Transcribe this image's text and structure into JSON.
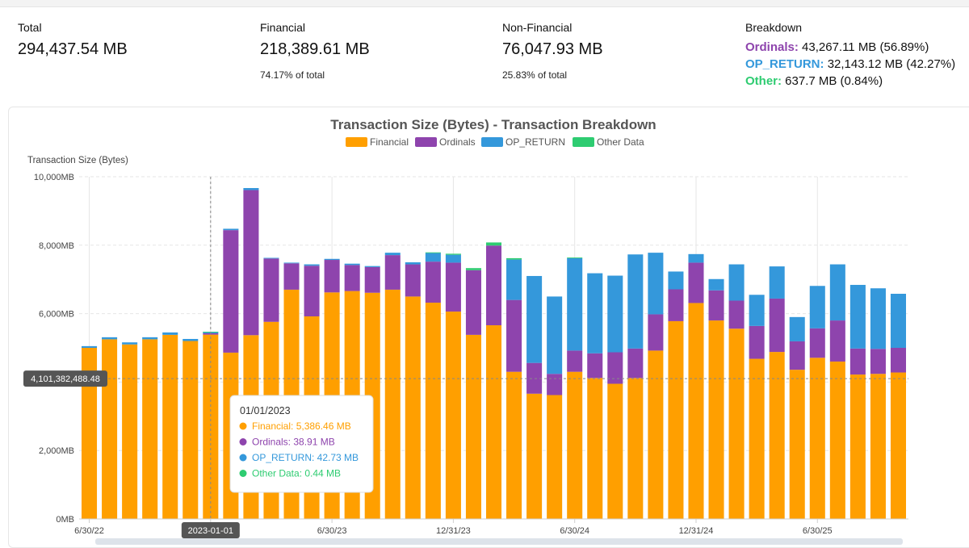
{
  "stats": {
    "total": {
      "label": "Total",
      "value": "294,437.54 MB"
    },
    "financial": {
      "label": "Financial",
      "value": "218,389.61 MB",
      "sub": "74.17% of total"
    },
    "non_financial": {
      "label": "Non-Financial",
      "value": "76,047.93 MB",
      "sub": "25.83% of total"
    },
    "breakdown": {
      "label": "Breakdown",
      "ordinals": {
        "name": "Ordinals:",
        "value": "43,267.11 MB (56.89%)"
      },
      "op_return": {
        "name": "OP_RETURN:",
        "value": "32,143.12 MB (42.27%)"
      },
      "other": {
        "name": "Other:",
        "value": "637.7 MB (0.84%)"
      }
    }
  },
  "colors": {
    "financial": "#ff9f00",
    "ordinals": "#8e44ad",
    "op_return": "#3498db",
    "other": "#2ecc71"
  },
  "chart_data": {
    "type": "bar",
    "stacked": true,
    "title": "Transaction Size (Bytes) - Transaction Breakdown",
    "ylabel": "Transaction Size (Bytes)",
    "ylim": [
      0,
      10000
    ],
    "yticks": [
      0,
      2000,
      4000,
      6000,
      8000,
      10000
    ],
    "ytick_labels": [
      "0MB",
      "2,000MB",
      "",
      "6,000MB",
      "8,000MB",
      "10,000MB"
    ],
    "x_tick_labels": [
      {
        "index": 0,
        "label": "6/30/22"
      },
      {
        "index": 6,
        "label": "2023-01-01"
      },
      {
        "index": 12,
        "label": "6/30/23"
      },
      {
        "index": 18,
        "label": "12/31/23"
      },
      {
        "index": 24,
        "label": "6/30/24"
      },
      {
        "index": 30,
        "label": "12/31/24"
      },
      {
        "index": 36,
        "label": "6/30/25"
      }
    ],
    "legend": [
      "Financial",
      "Ordinals",
      "OP_RETURN",
      "Other Data"
    ],
    "legend_position": "top",
    "series": [
      {
        "name": "Financial",
        "values": [
          5000,
          5250,
          5100,
          5250,
          5380,
          5200,
          5386,
          4860,
          5370,
          5760,
          6700,
          5920,
          6620,
          6660,
          6610,
          6700,
          6500,
          6320,
          6060,
          5380,
          5660,
          4300,
          3660,
          3620,
          4300,
          4120,
          3950,
          4120,
          4920,
          5780,
          6310,
          5800,
          5560,
          4680,
          4880,
          4360,
          4710,
          4600,
          4220,
          4240,
          4280
        ]
      },
      {
        "name": "Ordinals",
        "values": [
          0,
          0,
          0,
          0,
          0,
          0,
          39,
          3580,
          4240,
          1850,
          770,
          1480,
          950,
          760,
          750,
          1010,
          940,
          1200,
          1430,
          1890,
          2330,
          2100,
          900,
          620,
          620,
          720,
          920,
          860,
          1060,
          930,
          1180,
          880,
          820,
          960,
          1560,
          830,
          860,
          1200,
          760,
          730,
          720
        ]
      },
      {
        "name": "OP_RETURN",
        "values": [
          50,
          60,
          60,
          60,
          70,
          60,
          43,
          40,
          60,
          20,
          20,
          40,
          30,
          40,
          30,
          70,
          60,
          250,
          230,
          0,
          0,
          1180,
          2540,
          2260,
          2700,
          2340,
          2240,
          2750,
          1800,
          520,
          250,
          330,
          1060,
          910,
          940,
          710,
          1240,
          1640,
          1860,
          1770,
          1580
        ]
      },
      {
        "name": "Other Data",
        "values": [
          0,
          0,
          0,
          0,
          0,
          0,
          0.44,
          0,
          0,
          0,
          0,
          0,
          0,
          0,
          0,
          0,
          0,
          20,
          30,
          60,
          90,
          40,
          0,
          0,
          20,
          0,
          0,
          0,
          0,
          0,
          0,
          0,
          0,
          0,
          0,
          0,
          0,
          0,
          0,
          0,
          0
        ]
      }
    ],
    "crosshair": {
      "y_value": "4,101,382,488.48",
      "y_data": 4101,
      "x_label": "2023-01-01",
      "x_index": 6
    },
    "tooltip": {
      "date": "01/01/2023",
      "lines": [
        "Financial: 5,386.46 MB",
        "Ordinals: 38.91 MB",
        "OP_RETURN: 42.73 MB",
        "Other Data: 0.44 MB"
      ]
    }
  }
}
